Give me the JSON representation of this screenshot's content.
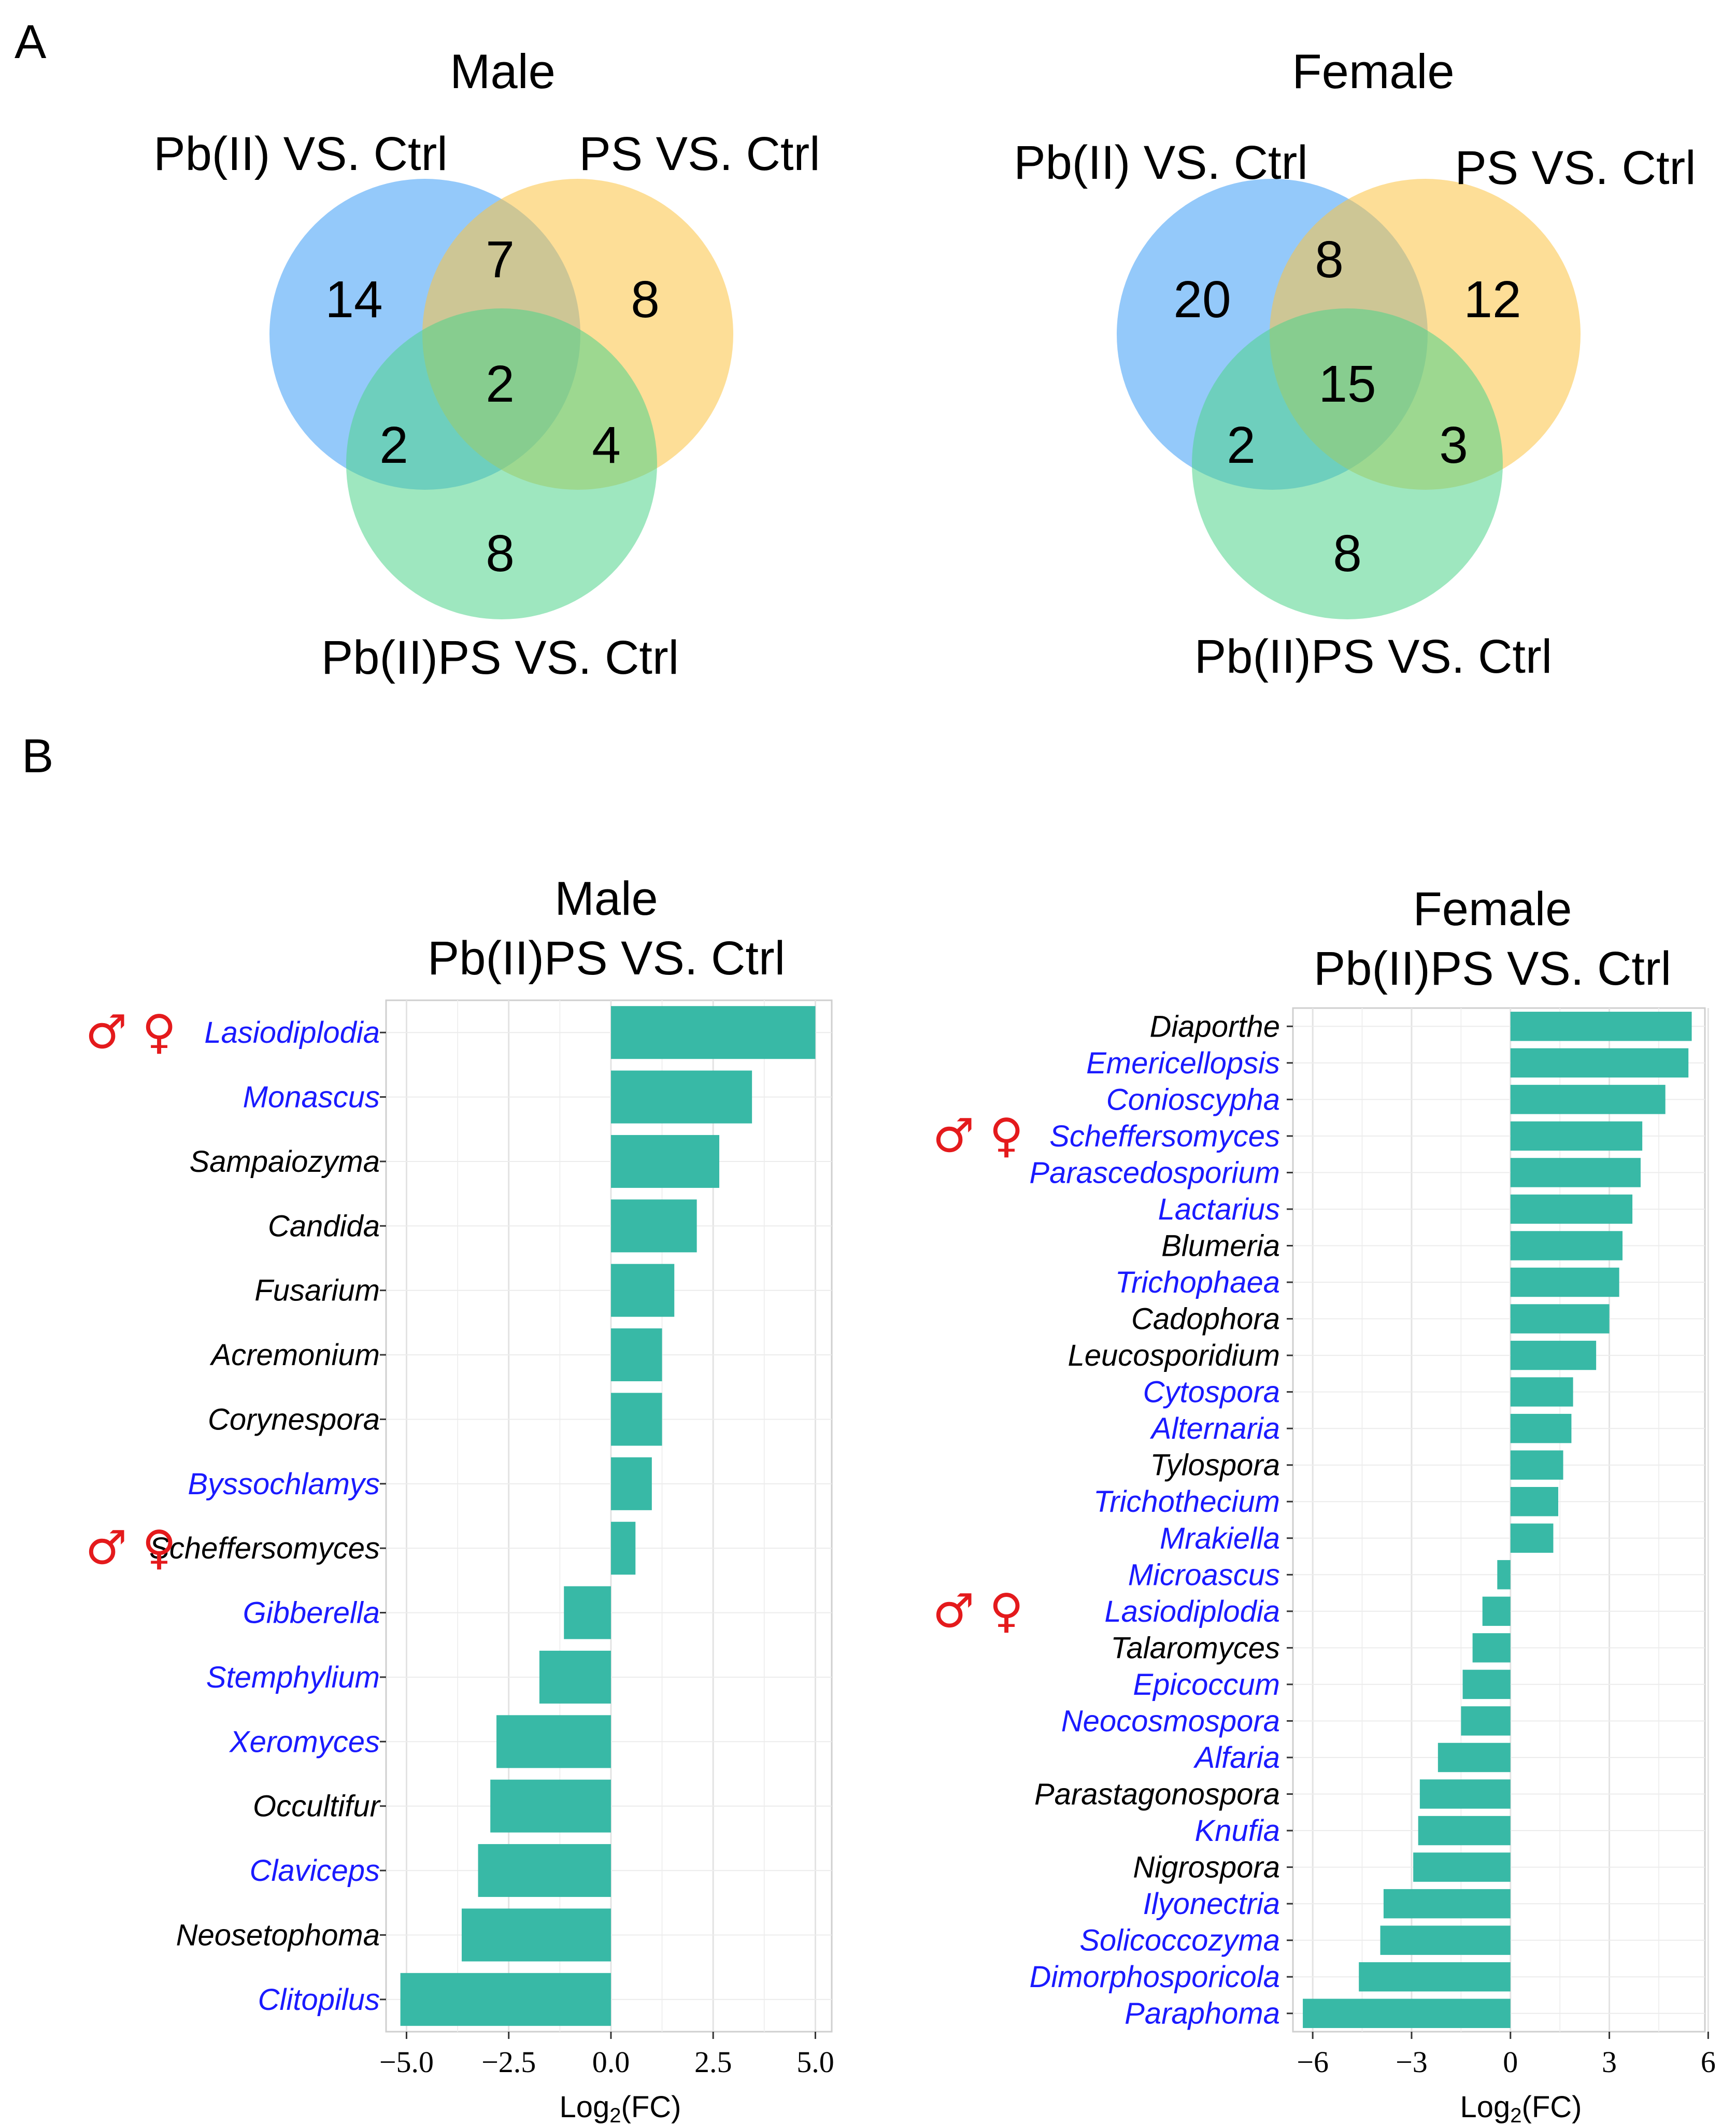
{
  "panels": {
    "a_label": "A",
    "b_label": "B"
  },
  "venn": [
    {
      "title": "Male",
      "sets": [
        "Pb(II) VS. Ctrl",
        "PS VS. Ctrl",
        "Pb(II)PS VS. Ctrl"
      ],
      "counts": {
        "a_only": "14",
        "b_only": "8",
        "c_only": "8",
        "ab": "7",
        "ac": "2",
        "bc": "4",
        "abc": "2"
      },
      "colors": [
        "#3d9cf5",
        "#fcc342",
        "#4fd38a"
      ]
    },
    {
      "title": "Female",
      "sets": [
        "Pb(II) VS. Ctrl",
        "PS VS. Ctrl",
        "Pb(II)PS VS. Ctrl"
      ],
      "counts": {
        "a_only": "20",
        "b_only": "12",
        "c_only": "8",
        "ab": "8",
        "ac": "2",
        "bc": "3",
        "abc": "15"
      },
      "colors": [
        "#3d9cf5",
        "#fcc342",
        "#4fd38a"
      ]
    }
  ],
  "chart_data": [
    {
      "type": "bar",
      "orientation": "horizontal",
      "title_line1": "Male",
      "title_line2": "Pb(II)PS VS. Ctrl",
      "xlabel_main": "Log",
      "xlabel_sub": "2",
      "xlabel_tail": "(FC)",
      "xlim": [
        -5.5,
        5.4
      ],
      "xticks": [
        -5.0,
        -2.5,
        0.0,
        2.5,
        5.0
      ],
      "xtick_labels": [
        "−5.0",
        "−2.5",
        "0.0",
        "2.5",
        "5.0"
      ],
      "bar_color": "#38b9a6",
      "categories": [
        "Lasiodiplodia",
        "Monascus",
        "Sampaiozyma",
        "Candida",
        "Fusarium",
        "Acremonium",
        "Corynespora",
        "Byssochlamys",
        "Scheffersomyces",
        "Gibberella",
        "Stemphylium",
        "Xeromyces",
        "Occultifur",
        "Claviceps",
        "Neosetophoma",
        "Clitopilus"
      ],
      "values": [
        5.0,
        3.45,
        2.65,
        2.1,
        1.55,
        1.25,
        1.25,
        1.0,
        0.6,
        -1.15,
        -1.75,
        -2.8,
        -2.95,
        -3.25,
        -3.65,
        -5.15
      ],
      "label_colors": [
        "#1a1aff",
        "#1a1aff",
        "#000000",
        "#000000",
        "#000000",
        "#000000",
        "#000000",
        "#1a1aff",
        "#000000",
        "#1a1aff",
        "#1a1aff",
        "#1a1aff",
        "#000000",
        "#1a1aff",
        "#000000",
        "#1a1aff"
      ],
      "sex_marks": [
        "♂ ♀",
        "",
        "",
        "",
        "",
        "",
        "",
        "",
        "♂ ♀",
        "",
        "",
        "",
        "",
        "",
        "",
        ""
      ],
      "grid": true
    },
    {
      "type": "bar",
      "orientation": "horizontal",
      "title_line1": "Female",
      "title_line2": "Pb(II)PS VS. Ctrl",
      "xlabel_main": "Log",
      "xlabel_sub": "2",
      "xlabel_tail": "(FC)",
      "xlim": [
        -6.6,
        5.9
      ],
      "xticks": [
        -6,
        -3,
        0,
        3,
        6
      ],
      "xtick_labels": [
        "−6",
        "−3",
        "0",
        "3",
        "6"
      ],
      "bar_color": "#38b9a6",
      "categories": [
        "Diaporthe",
        "Emericellopsis",
        "Conioscypha",
        "Scheffersomyces",
        "Parascedosporium",
        "Lactarius",
        "Blumeria",
        "Trichophaea",
        "Cadophora",
        "Leucosporidium",
        "Cytospora",
        "Alternaria",
        "Tylospora",
        "Trichothecium",
        "Mrakiella",
        "Microascus",
        "Lasiodiplodia",
        "Talaromyces",
        "Epicoccum",
        "Neocosmospora",
        "Alfaria",
        "Parastagonospora",
        "Knufia",
        "Nigrospora",
        "Ilyonectria",
        "Solicoccozyma",
        "Dimorphosporicola",
        "Paraphoma"
      ],
      "values": [
        5.5,
        5.4,
        4.7,
        4.0,
        3.95,
        3.7,
        3.4,
        3.3,
        3.0,
        2.6,
        1.9,
        1.85,
        1.6,
        1.45,
        1.3,
        -0.4,
        -0.85,
        -1.15,
        -1.45,
        -1.5,
        -2.2,
        -2.75,
        -2.8,
        -2.95,
        -3.85,
        -3.95,
        -4.6,
        -6.3
      ],
      "label_colors": [
        "#000000",
        "#1a1aff",
        "#1a1aff",
        "#1a1aff",
        "#1a1aff",
        "#1a1aff",
        "#000000",
        "#1a1aff",
        "#000000",
        "#000000",
        "#1a1aff",
        "#1a1aff",
        "#000000",
        "#1a1aff",
        "#1a1aff",
        "#1a1aff",
        "#1a1aff",
        "#000000",
        "#1a1aff",
        "#1a1aff",
        "#1a1aff",
        "#000000",
        "#1a1aff",
        "#000000",
        "#1a1aff",
        "#1a1aff",
        "#1a1aff",
        "#1a1aff"
      ],
      "sex_marks": [
        "",
        "",
        "",
        "♂ ♀",
        "",
        "",
        "",
        "",
        "",
        "",
        "",
        "",
        "",
        "",
        "",
        "",
        "♂ ♀",
        "",
        "",
        "",
        "",
        "",
        "",
        "",
        "",
        "",
        "",
        ""
      ],
      "grid": true
    }
  ]
}
